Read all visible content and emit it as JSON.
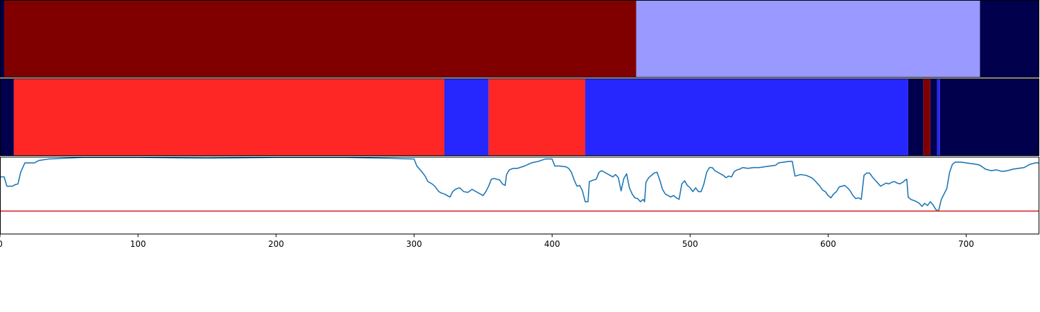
{
  "chart_data": [
    {
      "type": "heatmap",
      "colormap": "seismic",
      "xlim": [
        0,
        753
      ],
      "segments": [
        {
          "start": 0,
          "end": 3,
          "color": "#00004c"
        },
        {
          "start": 3,
          "end": 461,
          "color": "#800000"
        },
        {
          "start": 461,
          "end": 710,
          "color": "#9999ff"
        },
        {
          "start": 710,
          "end": 753,
          "color": "#00004c"
        }
      ]
    },
    {
      "type": "heatmap",
      "colormap": "seismic",
      "xlim": [
        0,
        753
      ],
      "segments": [
        {
          "start": 0,
          "end": 10,
          "color": "#00004c"
        },
        {
          "start": 10,
          "end": 322,
          "color": "#ff2626"
        },
        {
          "start": 322,
          "end": 354,
          "color": "#2626ff"
        },
        {
          "start": 354,
          "end": 424,
          "color": "#ff2626"
        },
        {
          "start": 424,
          "end": 658,
          "color": "#2626ff"
        },
        {
          "start": 658,
          "end": 669,
          "color": "#00004c"
        },
        {
          "start": 669,
          "end": 674,
          "color": "#800000"
        },
        {
          "start": 674,
          "end": 679,
          "color": "#00004c"
        },
        {
          "start": 679,
          "end": 681,
          "color": "#2626ff"
        },
        {
          "start": 681,
          "end": 753,
          "color": "#00004c"
        }
      ]
    },
    {
      "type": "line",
      "xlim": [
        0,
        753
      ],
      "ylim": [
        0,
        1
      ],
      "line_color": "#1f77b4",
      "threshold": 0.3,
      "threshold_color": "#d62728",
      "x_ticks": [
        0,
        100,
        200,
        300,
        400,
        500,
        600,
        700
      ],
      "x_tick_labels": [
        "0",
        "100",
        "200",
        "300",
        "400",
        "500",
        "600",
        "700"
      ],
      "points": [
        [
          0,
          0.74
        ],
        [
          3,
          0.74
        ],
        [
          5,
          0.62
        ],
        [
          9,
          0.62
        ],
        [
          11,
          0.64
        ],
        [
          13,
          0.65
        ],
        [
          15,
          0.8
        ],
        [
          18,
          0.92
        ],
        [
          25,
          0.92
        ],
        [
          28,
          0.95
        ],
        [
          35,
          0.97
        ],
        [
          60,
          0.99
        ],
        [
          100,
          0.99
        ],
        [
          150,
          0.98
        ],
        [
          200,
          0.99
        ],
        [
          250,
          0.99
        ],
        [
          280,
          0.98
        ],
        [
          300,
          0.97
        ],
        [
          302,
          0.88
        ],
        [
          305,
          0.82
        ],
        [
          308,
          0.75
        ],
        [
          310,
          0.68
        ],
        [
          313,
          0.65
        ],
        [
          315,
          0.62
        ],
        [
          318,
          0.55
        ],
        [
          320,
          0.53
        ],
        [
          322,
          0.52
        ],
        [
          324,
          0.5
        ],
        [
          326,
          0.48
        ],
        [
          328,
          0.55
        ],
        [
          330,
          0.58
        ],
        [
          333,
          0.6
        ],
        [
          336,
          0.55
        ],
        [
          339,
          0.54
        ],
        [
          342,
          0.58
        ],
        [
          345,
          0.55
        ],
        [
          348,
          0.52
        ],
        [
          350,
          0.5
        ],
        [
          352,
          0.55
        ],
        [
          354,
          0.62
        ],
        [
          356,
          0.71
        ],
        [
          358,
          0.72
        ],
        [
          362,
          0.7
        ],
        [
          364,
          0.65
        ],
        [
          366,
          0.63
        ],
        [
          367,
          0.77
        ],
        [
          369,
          0.83
        ],
        [
          372,
          0.85
        ],
        [
          375,
          0.85
        ],
        [
          380,
          0.88
        ],
        [
          385,
          0.92
        ],
        [
          390,
          0.94
        ],
        [
          395,
          0.97
        ],
        [
          400,
          0.97
        ],
        [
          402,
          0.88
        ],
        [
          405,
          0.88
        ],
        [
          410,
          0.87
        ],
        [
          412,
          0.85
        ],
        [
          414,
          0.8
        ],
        [
          416,
          0.7
        ],
        [
          418,
          0.62
        ],
        [
          420,
          0.63
        ],
        [
          422,
          0.56
        ],
        [
          424,
          0.42
        ],
        [
          426,
          0.42
        ],
        [
          427,
          0.68
        ],
        [
          430,
          0.7
        ],
        [
          432,
          0.71
        ],
        [
          434,
          0.8
        ],
        [
          436,
          0.82
        ],
        [
          438,
          0.8
        ],
        [
          440,
          0.78
        ],
        [
          442,
          0.76
        ],
        [
          444,
          0.74
        ],
        [
          446,
          0.77
        ],
        [
          448,
          0.73
        ],
        [
          450,
          0.56
        ],
        [
          452,
          0.72
        ],
        [
          454,
          0.78
        ],
        [
          456,
          0.6
        ],
        [
          458,
          0.52
        ],
        [
          460,
          0.47
        ],
        [
          462,
          0.46
        ],
        [
          464,
          0.42
        ],
        [
          466,
          0.45
        ],
        [
          467,
          0.42
        ],
        [
          468,
          0.67
        ],
        [
          470,
          0.73
        ],
        [
          472,
          0.76
        ],
        [
          474,
          0.79
        ],
        [
          476,
          0.8
        ],
        [
          478,
          0.7
        ],
        [
          480,
          0.58
        ],
        [
          482,
          0.52
        ],
        [
          484,
          0.5
        ],
        [
          486,
          0.48
        ],
        [
          488,
          0.5
        ],
        [
          490,
          0.47
        ],
        [
          492,
          0.45
        ],
        [
          494,
          0.65
        ],
        [
          496,
          0.69
        ],
        [
          498,
          0.63
        ],
        [
          500,
          0.6
        ],
        [
          502,
          0.55
        ],
        [
          504,
          0.6
        ],
        [
          506,
          0.55
        ],
        [
          508,
          0.55
        ],
        [
          510,
          0.65
        ],
        [
          512,
          0.8
        ],
        [
          514,
          0.86
        ],
        [
          516,
          0.86
        ],
        [
          518,
          0.82
        ],
        [
          520,
          0.8
        ],
        [
          522,
          0.78
        ],
        [
          524,
          0.76
        ],
        [
          526,
          0.73
        ],
        [
          528,
          0.75
        ],
        [
          530,
          0.74
        ],
        [
          532,
          0.81
        ],
        [
          534,
          0.83
        ],
        [
          536,
          0.84
        ],
        [
          538,
          0.86
        ],
        [
          542,
          0.85
        ],
        [
          546,
          0.86
        ],
        [
          550,
          0.86
        ],
        [
          554,
          0.87
        ],
        [
          558,
          0.88
        ],
        [
          562,
          0.89
        ],
        [
          564,
          0.92
        ],
        [
          568,
          0.93
        ],
        [
          572,
          0.94
        ],
        [
          574,
          0.94
        ],
        [
          576,
          0.75
        ],
        [
          580,
          0.77
        ],
        [
          584,
          0.76
        ],
        [
          588,
          0.73
        ],
        [
          590,
          0.7
        ],
        [
          592,
          0.66
        ],
        [
          594,
          0.62
        ],
        [
          596,
          0.57
        ],
        [
          598,
          0.55
        ],
        [
          600,
          0.5
        ],
        [
          602,
          0.47
        ],
        [
          604,
          0.52
        ],
        [
          606,
          0.55
        ],
        [
          608,
          0.61
        ],
        [
          610,
          0.62
        ],
        [
          612,
          0.63
        ],
        [
          614,
          0.6
        ],
        [
          616,
          0.56
        ],
        [
          618,
          0.5
        ],
        [
          620,
          0.46
        ],
        [
          622,
          0.47
        ],
        [
          624,
          0.45
        ],
        [
          626,
          0.76
        ],
        [
          628,
          0.79
        ],
        [
          630,
          0.79
        ],
        [
          632,
          0.74
        ],
        [
          634,
          0.7
        ],
        [
          636,
          0.66
        ],
        [
          638,
          0.62
        ],
        [
          640,
          0.64
        ],
        [
          642,
          0.66
        ],
        [
          644,
          0.65
        ],
        [
          646,
          0.67
        ],
        [
          648,
          0.68
        ],
        [
          650,
          0.66
        ],
        [
          652,
          0.65
        ],
        [
          654,
          0.67
        ],
        [
          656,
          0.7
        ],
        [
          657,
          0.71
        ],
        [
          658,
          0.48
        ],
        [
          660,
          0.45
        ],
        [
          663,
          0.43
        ],
        [
          666,
          0.4
        ],
        [
          668,
          0.36
        ],
        [
          670,
          0.4
        ],
        [
          672,
          0.37
        ],
        [
          674,
          0.42
        ],
        [
          676,
          0.38
        ],
        [
          678,
          0.32
        ],
        [
          680,
          0.3
        ],
        [
          682,
          0.45
        ],
        [
          684,
          0.52
        ],
        [
          686,
          0.59
        ],
        [
          688,
          0.8
        ],
        [
          690,
          0.9
        ],
        [
          692,
          0.93
        ],
        [
          696,
          0.93
        ],
        [
          700,
          0.92
        ],
        [
          704,
          0.91
        ],
        [
          708,
          0.9
        ],
        [
          710,
          0.89
        ],
        [
          714,
          0.84
        ],
        [
          718,
          0.82
        ],
        [
          722,
          0.83
        ],
        [
          726,
          0.81
        ],
        [
          730,
          0.82
        ],
        [
          734,
          0.84
        ],
        [
          738,
          0.85
        ],
        [
          742,
          0.86
        ],
        [
          744,
          0.88
        ],
        [
          746,
          0.9
        ],
        [
          750,
          0.92
        ],
        [
          753,
          0.92
        ]
      ]
    }
  ]
}
